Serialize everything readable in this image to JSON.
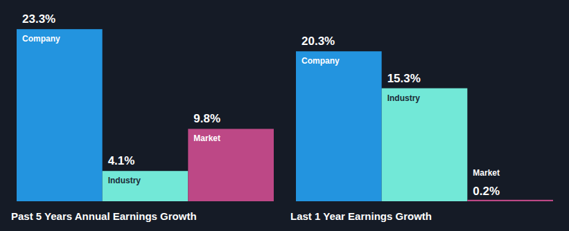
{
  "chart_data": [
    {
      "type": "bar",
      "title": "Past 5 Years Annual Earnings Growth",
      "categories": [
        "Company",
        "Industry",
        "Market"
      ],
      "values": [
        23.3,
        4.1,
        9.8
      ],
      "value_labels": [
        "23.3%",
        "4.1%",
        "9.8%"
      ],
      "colors": [
        "#2394df",
        "#72e8d7",
        "#bd4886"
      ],
      "ylim": [
        0,
        25
      ],
      "data_labels": true,
      "tick_labels": false,
      "grid": false
    },
    {
      "type": "bar",
      "title": "Last 1 Year Earnings Growth",
      "categories": [
        "Company",
        "Industry",
        "Market"
      ],
      "values": [
        20.3,
        15.3,
        0.2
      ],
      "value_labels": [
        "20.3%",
        "15.3%",
        "0.2%"
      ],
      "colors": [
        "#2394df",
        "#72e8d7",
        "#bd4886"
      ],
      "ylim": [
        0,
        25
      ],
      "data_labels": true,
      "tick_labels": false,
      "grid": false
    }
  ]
}
